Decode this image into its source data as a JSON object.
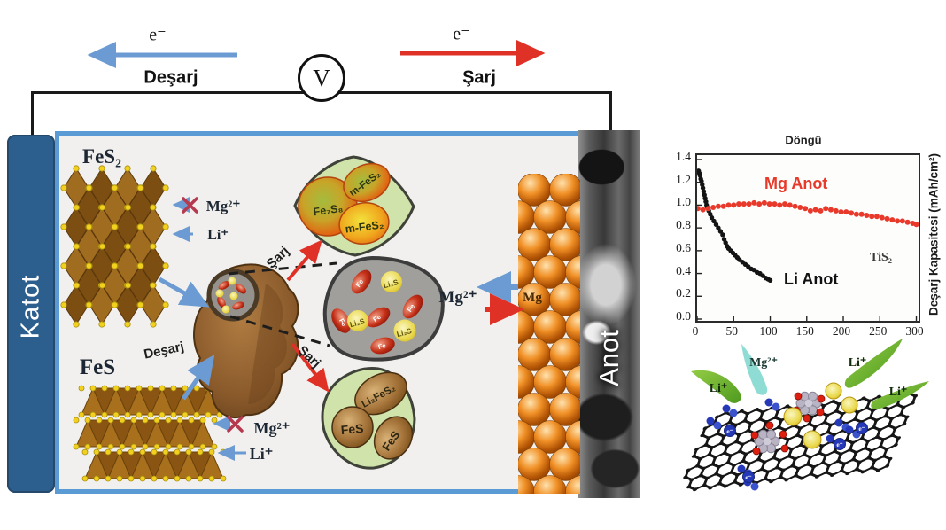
{
  "circuit": {
    "voltmeter": "V",
    "electron": "e⁻",
    "discharge": "Deşarj",
    "charge": "Şarj"
  },
  "cell": {
    "cathode": "Katot",
    "anode": "Anot",
    "fes2": "FeS₂",
    "fes": "FeS",
    "mg_ion": "Mg²⁺",
    "li_ion": "Li⁺",
    "mg_metal": "Mg",
    "discharge": "Deşarj",
    "charge": "Şarj",
    "charge_products": {
      "fe7s8": "Fe₇S₈",
      "m_fes2": "m-FeS₂"
    },
    "mid_products": {
      "fe": "Fe",
      "li2s": "Li₂S"
    },
    "bottom_products": {
      "li2fes2": "Li₂FeS₂",
      "fes": "FeS"
    }
  },
  "graphene": {
    "mg_ion": "Mg²⁺",
    "li_ion": "Li⁺",
    "electron": "e⁻"
  },
  "chart_data": {
    "type": "scatter",
    "title": "Döngü",
    "ylabel": "Deşarj Kapasitesi (mAh/cm²)",
    "xlim": [
      0,
      303
    ],
    "ylim": [
      0,
      1.4
    ],
    "xticks": [
      0,
      50,
      100,
      150,
      200,
      250,
      300
    ],
    "yticklabels": [
      "0.0",
      "0.2",
      "0.4",
      "0.6",
      "0.8",
      "1.0",
      "1.2",
      "1.4"
    ],
    "grid": false,
    "annotations": [
      {
        "text": "Mg Anot",
        "color": "#e8392a"
      },
      {
        "text": "Li Anot",
        "color": "#111111"
      },
      {
        "text": "TiS₂",
        "color": "#3a3a3a"
      }
    ],
    "series": [
      {
        "name": "Li Anot",
        "color": "#141414",
        "x": [
          2,
          3,
          4,
          5,
          6,
          7,
          8,
          9,
          10,
          11,
          12,
          13,
          14,
          16,
          18,
          20,
          23,
          26,
          29,
          32,
          35,
          37,
          39,
          41,
          43,
          46,
          49,
          52,
          55,
          58,
          62,
          66,
          70,
          74,
          78,
          82,
          86,
          90,
          94,
          97,
          100
        ],
        "y": [
          1.3,
          1.28,
          1.26,
          1.23,
          1.21,
          1.18,
          1.15,
          1.12,
          1.09,
          1.06,
          1.03,
          1.0,
          0.98,
          0.95,
          0.92,
          0.89,
          0.86,
          0.83,
          0.8,
          0.77,
          0.74,
          0.7,
          0.67,
          0.64,
          0.62,
          0.6,
          0.58,
          0.56,
          0.54,
          0.52,
          0.5,
          0.48,
          0.46,
          0.44,
          0.43,
          0.41,
          0.4,
          0.38,
          0.36,
          0.35,
          0.34
        ]
      },
      {
        "name": "Mg Anot",
        "color": "#e8392a",
        "x": [
          1,
          8,
          15,
          22,
          29,
          36,
          43,
          50,
          57,
          64,
          71,
          78,
          85,
          92,
          99,
          106,
          113,
          120,
          127,
          134,
          141,
          148,
          155,
          162,
          169,
          176,
          183,
          190,
          197,
          204,
          211,
          218,
          225,
          232,
          239,
          246,
          253,
          260,
          267,
          274,
          281,
          288,
          295,
          300
        ],
        "y": [
          0.97,
          0.96,
          0.97,
          0.98,
          0.99,
          0.99,
          1.0,
          1.0,
          1.01,
          1.01,
          1.01,
          1.02,
          1.01,
          1.02,
          1.01,
          1.01,
          1.0,
          1.01,
          1.0,
          0.99,
          0.98,
          0.97,
          0.95,
          0.96,
          0.95,
          0.97,
          0.96,
          0.95,
          0.94,
          0.94,
          0.93,
          0.92,
          0.92,
          0.91,
          0.9,
          0.9,
          0.89,
          0.88,
          0.87,
          0.86,
          0.86,
          0.85,
          0.84,
          0.83
        ]
      }
    ]
  },
  "colors": {
    "accent_blue": "#6b9bd2",
    "accent_red": "#e03127",
    "cathode_bar": "#2d5f8e",
    "cell_border": "#5b9bd5"
  }
}
